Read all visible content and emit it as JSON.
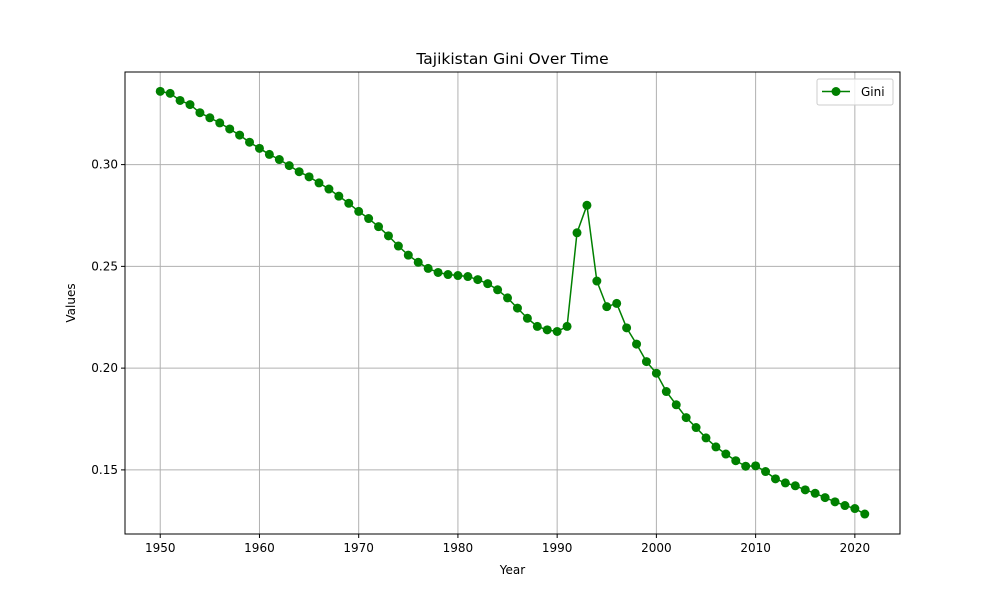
{
  "chart_data": {
    "type": "line",
    "title": "Tajikistan Gini Over Time",
    "xlabel": "Year",
    "ylabel": "Values",
    "xlim": [
      1946.45,
      2024.55
    ],
    "ylim": [
      0.1185,
      0.3455
    ],
    "xticks": [
      1950,
      1960,
      1970,
      1980,
      1990,
      2000,
      2010,
      2020
    ],
    "yticks": [
      0.15,
      0.2,
      0.25,
      0.3
    ],
    "ytick_labels": [
      "0.15",
      "0.20",
      "0.25",
      "0.30"
    ],
    "grid": true,
    "legend_position": "top-right",
    "series": [
      {
        "name": "Gini",
        "color": "#008000",
        "marker": "circle",
        "x": [
          1950,
          1951,
          1952,
          1953,
          1954,
          1955,
          1956,
          1957,
          1958,
          1959,
          1960,
          1961,
          1962,
          1963,
          1964,
          1965,
          1966,
          1967,
          1968,
          1969,
          1970,
          1971,
          1972,
          1973,
          1974,
          1975,
          1976,
          1977,
          1978,
          1979,
          1980,
          1981,
          1982,
          1983,
          1984,
          1985,
          1986,
          1987,
          1988,
          1989,
          1990,
          1991,
          1992,
          1993,
          1994,
          1995,
          1996,
          1997,
          1998,
          1999,
          2000,
          2001,
          2002,
          2003,
          2004,
          2005,
          2006,
          2007,
          2008,
          2009,
          2010,
          2011,
          2012,
          2013,
          2014,
          2015,
          2016,
          2017,
          2018,
          2019,
          2020,
          2021
        ],
        "y": [
          0.336,
          0.335,
          0.3315,
          0.3295,
          0.3255,
          0.323,
          0.3205,
          0.3175,
          0.3145,
          0.311,
          0.308,
          0.305,
          0.3025,
          0.2995,
          0.2965,
          0.294,
          0.291,
          0.288,
          0.2845,
          0.281,
          0.277,
          0.2735,
          0.2695,
          0.265,
          0.26,
          0.2555,
          0.252,
          0.249,
          0.247,
          0.246,
          0.2455,
          0.245,
          0.2435,
          0.2415,
          0.2385,
          0.2345,
          0.2295,
          0.2245,
          0.2205,
          0.2188,
          0.218,
          0.2205,
          0.2665,
          0.28,
          0.2428,
          0.2302,
          0.2318,
          0.2198,
          0.2118,
          0.2032,
          0.1975,
          0.1885,
          0.182,
          0.1757,
          0.1708,
          0.1657,
          0.1613,
          0.1578,
          0.1545,
          0.1518,
          0.152,
          0.1492,
          0.1456,
          0.1436,
          0.1422,
          0.1402,
          0.1385,
          0.1364,
          0.1343,
          0.1325,
          0.131,
          0.1283
        ]
      }
    ]
  }
}
